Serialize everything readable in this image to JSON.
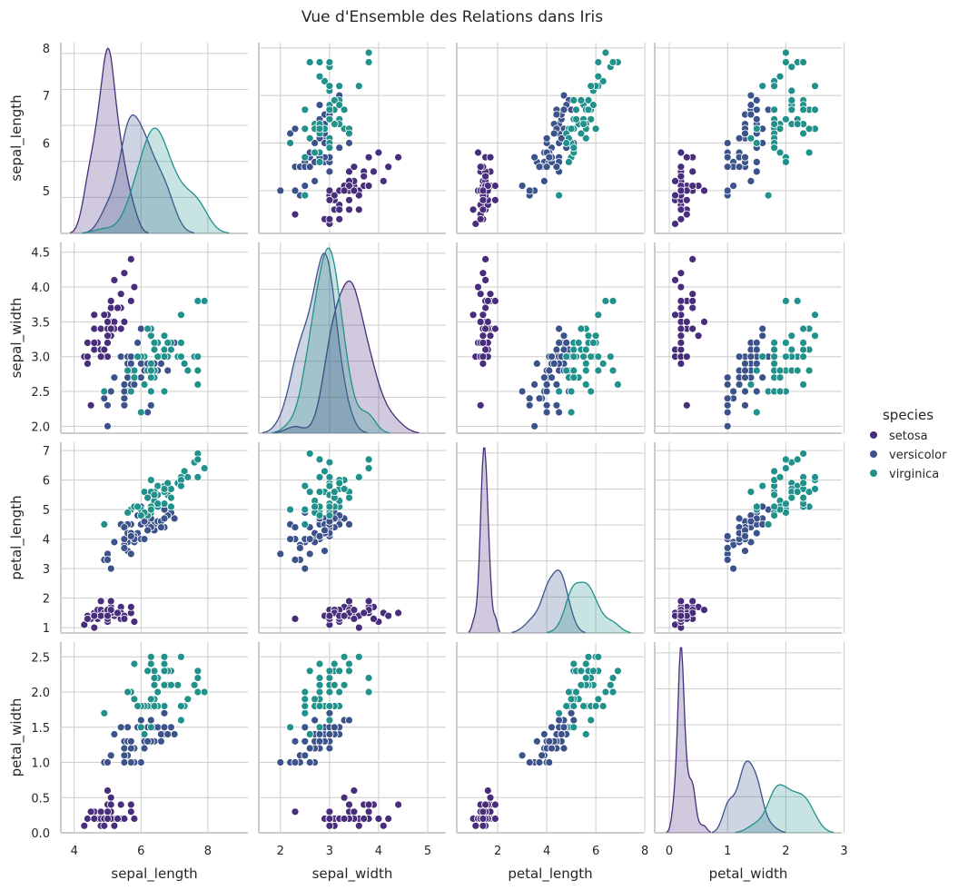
{
  "chart_data": {
    "type": "pairplot",
    "title": "Vue d'Ensemble des Relations dans Iris",
    "variables": [
      "sepal_length",
      "sepal_width",
      "petal_length",
      "petal_width"
    ],
    "hue": "species",
    "legend": {
      "title": "species",
      "placement": "right",
      "entries": [
        "setosa",
        "versicolor",
        "virginica"
      ]
    },
    "palette": {
      "setosa": "#472d7b",
      "versicolor": "#3b528b",
      "virginica": "#21918c"
    },
    "diagonal": "kde",
    "offdiagonal": "scatter",
    "grid": true,
    "axes": {
      "sepal_length": {
        "lim": [
          3.6,
          9.2
        ],
        "ticks_x": [
          "4",
          "6",
          "8"
        ],
        "ticks_y": [
          "5",
          "6",
          "7",
          "8"
        ]
      },
      "sepal_width": {
        "lim_x": [
          1.56,
          5.37
        ],
        "lim_y": [
          1.9,
          4.64
        ],
        "ticks_x": [
          "2",
          "3",
          "4",
          "5"
        ],
        "ticks_y": [
          "2.0",
          "2.5",
          "3.0",
          "3.5",
          "4.0",
          "4.5"
        ]
      },
      "petal_length": {
        "lim_x": [
          0.33,
          7.96
        ],
        "lim_y": [
          0.82,
          7.28
        ],
        "ticks_x": [
          "2",
          "4",
          "6",
          "8"
        ],
        "ticks_y": [
          "1",
          "2",
          "3",
          "4",
          "5",
          "6",
          "7"
        ]
      },
      "petal_width": {
        "lim_x": [
          -0.25,
          2.96
        ],
        "lim_y": [
          0.0,
          2.71
        ],
        "ticks_x": [
          "0",
          "1",
          "2",
          "3"
        ],
        "ticks_y": [
          "0.0",
          "0.5",
          "1.0",
          "1.5",
          "2.0",
          "2.5"
        ]
      }
    },
    "data": {
      "setosa": [
        [
          5.1,
          3.5,
          1.4,
          0.2
        ],
        [
          4.9,
          3.0,
          1.4,
          0.2
        ],
        [
          4.7,
          3.2,
          1.3,
          0.2
        ],
        [
          4.6,
          3.1,
          1.5,
          0.2
        ],
        [
          5.0,
          3.6,
          1.4,
          0.2
        ],
        [
          5.4,
          3.9,
          1.7,
          0.4
        ],
        [
          4.6,
          3.4,
          1.4,
          0.3
        ],
        [
          5.0,
          3.4,
          1.5,
          0.2
        ],
        [
          4.4,
          2.9,
          1.4,
          0.2
        ],
        [
          4.9,
          3.1,
          1.5,
          0.1
        ],
        [
          5.4,
          3.7,
          1.5,
          0.2
        ],
        [
          4.8,
          3.4,
          1.6,
          0.2
        ],
        [
          4.8,
          3.0,
          1.4,
          0.1
        ],
        [
          4.3,
          3.0,
          1.1,
          0.1
        ],
        [
          5.8,
          4.0,
          1.2,
          0.2
        ],
        [
          5.7,
          4.4,
          1.5,
          0.4
        ],
        [
          5.4,
          3.9,
          1.3,
          0.4
        ],
        [
          5.1,
          3.5,
          1.4,
          0.3
        ],
        [
          5.7,
          3.8,
          1.7,
          0.3
        ],
        [
          5.1,
          3.8,
          1.5,
          0.3
        ],
        [
          5.4,
          3.4,
          1.7,
          0.2
        ],
        [
          5.1,
          3.7,
          1.5,
          0.4
        ],
        [
          4.6,
          3.6,
          1.0,
          0.2
        ],
        [
          5.1,
          3.3,
          1.7,
          0.5
        ],
        [
          4.8,
          3.4,
          1.9,
          0.2
        ],
        [
          5.0,
          3.0,
          1.6,
          0.2
        ],
        [
          5.0,
          3.4,
          1.6,
          0.4
        ],
        [
          5.2,
          3.5,
          1.5,
          0.2
        ],
        [
          5.2,
          3.4,
          1.4,
          0.2
        ],
        [
          4.7,
          3.2,
          1.6,
          0.2
        ],
        [
          4.8,
          3.1,
          1.6,
          0.2
        ],
        [
          5.4,
          3.4,
          1.5,
          0.4
        ],
        [
          5.2,
          4.1,
          1.5,
          0.1
        ],
        [
          5.5,
          4.2,
          1.4,
          0.2
        ],
        [
          4.9,
          3.1,
          1.5,
          0.2
        ],
        [
          5.0,
          3.2,
          1.2,
          0.2
        ],
        [
          5.5,
          3.5,
          1.3,
          0.2
        ],
        [
          4.9,
          3.6,
          1.4,
          0.1
        ],
        [
          4.4,
          3.0,
          1.3,
          0.2
        ],
        [
          5.1,
          3.4,
          1.5,
          0.2
        ],
        [
          5.0,
          3.5,
          1.3,
          0.3
        ],
        [
          4.5,
          2.3,
          1.3,
          0.3
        ],
        [
          4.4,
          3.2,
          1.3,
          0.2
        ],
        [
          5.0,
          3.5,
          1.6,
          0.6
        ],
        [
          5.1,
          3.8,
          1.9,
          0.4
        ],
        [
          4.8,
          3.0,
          1.4,
          0.3
        ],
        [
          5.1,
          3.8,
          1.6,
          0.2
        ],
        [
          4.6,
          3.2,
          1.4,
          0.2
        ],
        [
          5.3,
          3.7,
          1.5,
          0.2
        ],
        [
          5.0,
          3.3,
          1.4,
          0.2
        ]
      ],
      "versicolor": [
        [
          7.0,
          3.2,
          4.7,
          1.4
        ],
        [
          6.4,
          3.2,
          4.5,
          1.5
        ],
        [
          6.9,
          3.1,
          4.9,
          1.5
        ],
        [
          5.5,
          2.3,
          4.0,
          1.3
        ],
        [
          6.5,
          2.8,
          4.6,
          1.5
        ],
        [
          5.7,
          2.8,
          4.5,
          1.3
        ],
        [
          6.3,
          3.3,
          4.7,
          1.6
        ],
        [
          4.9,
          2.4,
          3.3,
          1.0
        ],
        [
          6.6,
          2.9,
          4.6,
          1.3
        ],
        [
          5.2,
          2.7,
          3.9,
          1.4
        ],
        [
          5.0,
          2.0,
          3.5,
          1.0
        ],
        [
          5.9,
          3.0,
          4.2,
          1.5
        ],
        [
          6.0,
          2.2,
          4.0,
          1.0
        ],
        [
          6.1,
          2.9,
          4.7,
          1.4
        ],
        [
          5.6,
          2.9,
          3.6,
          1.3
        ],
        [
          6.7,
          3.1,
          4.4,
          1.4
        ],
        [
          5.6,
          3.0,
          4.5,
          1.5
        ],
        [
          5.8,
          2.7,
          4.1,
          1.0
        ],
        [
          6.2,
          2.2,
          4.5,
          1.5
        ],
        [
          5.6,
          2.5,
          3.9,
          1.1
        ],
        [
          5.9,
          3.2,
          4.8,
          1.8
        ],
        [
          6.1,
          2.8,
          4.0,
          1.3
        ],
        [
          6.3,
          2.5,
          4.9,
          1.5
        ],
        [
          6.1,
          2.8,
          4.7,
          1.2
        ],
        [
          6.4,
          2.9,
          4.3,
          1.3
        ],
        [
          6.6,
          3.0,
          4.4,
          1.4
        ],
        [
          6.8,
          2.8,
          4.8,
          1.4
        ],
        [
          6.7,
          3.0,
          5.0,
          1.7
        ],
        [
          6.0,
          2.9,
          4.5,
          1.5
        ],
        [
          5.7,
          2.6,
          3.5,
          1.0
        ],
        [
          5.5,
          2.4,
          3.8,
          1.1
        ],
        [
          5.5,
          2.4,
          3.7,
          1.0
        ],
        [
          5.8,
          2.7,
          3.9,
          1.2
        ],
        [
          6.0,
          2.7,
          5.1,
          1.6
        ],
        [
          5.4,
          3.0,
          4.5,
          1.5
        ],
        [
          6.0,
          3.4,
          4.5,
          1.6
        ],
        [
          6.7,
          3.1,
          4.7,
          1.5
        ],
        [
          6.3,
          2.3,
          4.4,
          1.3
        ],
        [
          5.6,
          3.0,
          4.1,
          1.3
        ],
        [
          5.5,
          2.5,
          4.0,
          1.3
        ],
        [
          5.5,
          2.6,
          4.4,
          1.2
        ],
        [
          6.1,
          3.0,
          4.6,
          1.4
        ],
        [
          5.8,
          2.6,
          4.0,
          1.2
        ],
        [
          5.0,
          2.3,
          3.3,
          1.0
        ],
        [
          5.6,
          2.7,
          4.2,
          1.3
        ],
        [
          5.7,
          3.0,
          4.2,
          1.2
        ],
        [
          5.7,
          2.9,
          4.2,
          1.3
        ],
        [
          6.2,
          2.9,
          4.3,
          1.3
        ],
        [
          5.1,
          2.5,
          3.0,
          1.1
        ],
        [
          5.7,
          2.8,
          4.1,
          1.3
        ]
      ],
      "virginica": [
        [
          6.3,
          3.3,
          6.0,
          2.5
        ],
        [
          5.8,
          2.7,
          5.1,
          1.9
        ],
        [
          7.1,
          3.0,
          5.9,
          2.1
        ],
        [
          6.3,
          2.9,
          5.6,
          1.8
        ],
        [
          6.5,
          3.0,
          5.8,
          2.2
        ],
        [
          7.6,
          3.0,
          6.6,
          2.1
        ],
        [
          4.9,
          2.5,
          4.5,
          1.7
        ],
        [
          7.3,
          2.9,
          6.3,
          1.8
        ],
        [
          6.7,
          2.5,
          5.8,
          1.8
        ],
        [
          7.2,
          3.6,
          6.1,
          2.5
        ],
        [
          6.5,
          3.2,
          5.1,
          2.0
        ],
        [
          6.4,
          2.7,
          5.3,
          1.9
        ],
        [
          6.8,
          3.0,
          5.5,
          2.1
        ],
        [
          5.7,
          2.5,
          5.0,
          2.0
        ],
        [
          5.8,
          2.8,
          5.1,
          2.4
        ],
        [
          6.4,
          3.2,
          5.3,
          2.3
        ],
        [
          6.5,
          3.0,
          5.5,
          1.8
        ],
        [
          7.7,
          3.8,
          6.7,
          2.2
        ],
        [
          7.7,
          2.6,
          6.9,
          2.3
        ],
        [
          6.0,
          2.2,
          5.0,
          1.5
        ],
        [
          6.9,
          3.2,
          5.7,
          2.3
        ],
        [
          5.6,
          2.8,
          4.9,
          2.0
        ],
        [
          7.7,
          2.8,
          6.7,
          2.0
        ],
        [
          6.3,
          2.7,
          4.9,
          1.8
        ],
        [
          6.7,
          3.3,
          5.7,
          2.1
        ],
        [
          7.2,
          3.2,
          6.0,
          1.8
        ],
        [
          6.2,
          2.8,
          4.8,
          1.8
        ],
        [
          6.1,
          3.0,
          4.9,
          1.8
        ],
        [
          6.4,
          2.8,
          5.6,
          2.1
        ],
        [
          7.2,
          3.0,
          5.8,
          1.6
        ],
        [
          7.4,
          2.8,
          6.1,
          1.9
        ],
        [
          7.9,
          3.8,
          6.4,
          2.0
        ],
        [
          6.4,
          2.8,
          5.6,
          2.2
        ],
        [
          6.3,
          2.8,
          5.1,
          1.5
        ],
        [
          6.1,
          2.6,
          5.6,
          1.4
        ],
        [
          7.7,
          3.0,
          6.1,
          2.3
        ],
        [
          6.3,
          3.4,
          5.6,
          2.4
        ],
        [
          6.4,
          3.1,
          5.5,
          1.8
        ],
        [
          6.0,
          3.0,
          4.8,
          1.8
        ],
        [
          6.9,
          3.1,
          5.4,
          2.1
        ],
        [
          6.7,
          3.1,
          5.6,
          2.4
        ],
        [
          6.9,
          3.1,
          5.1,
          2.3
        ],
        [
          5.8,
          2.7,
          5.1,
          1.9
        ],
        [
          6.8,
          3.2,
          5.9,
          2.3
        ],
        [
          6.7,
          3.3,
          5.7,
          2.5
        ],
        [
          6.7,
          3.0,
          5.2,
          2.3
        ],
        [
          6.3,
          2.5,
          5.0,
          1.9
        ],
        [
          6.5,
          3.0,
          5.2,
          2.0
        ],
        [
          6.2,
          3.4,
          5.4,
          2.3
        ],
        [
          5.9,
          3.0,
          5.1,
          1.8
        ]
      ]
    }
  }
}
